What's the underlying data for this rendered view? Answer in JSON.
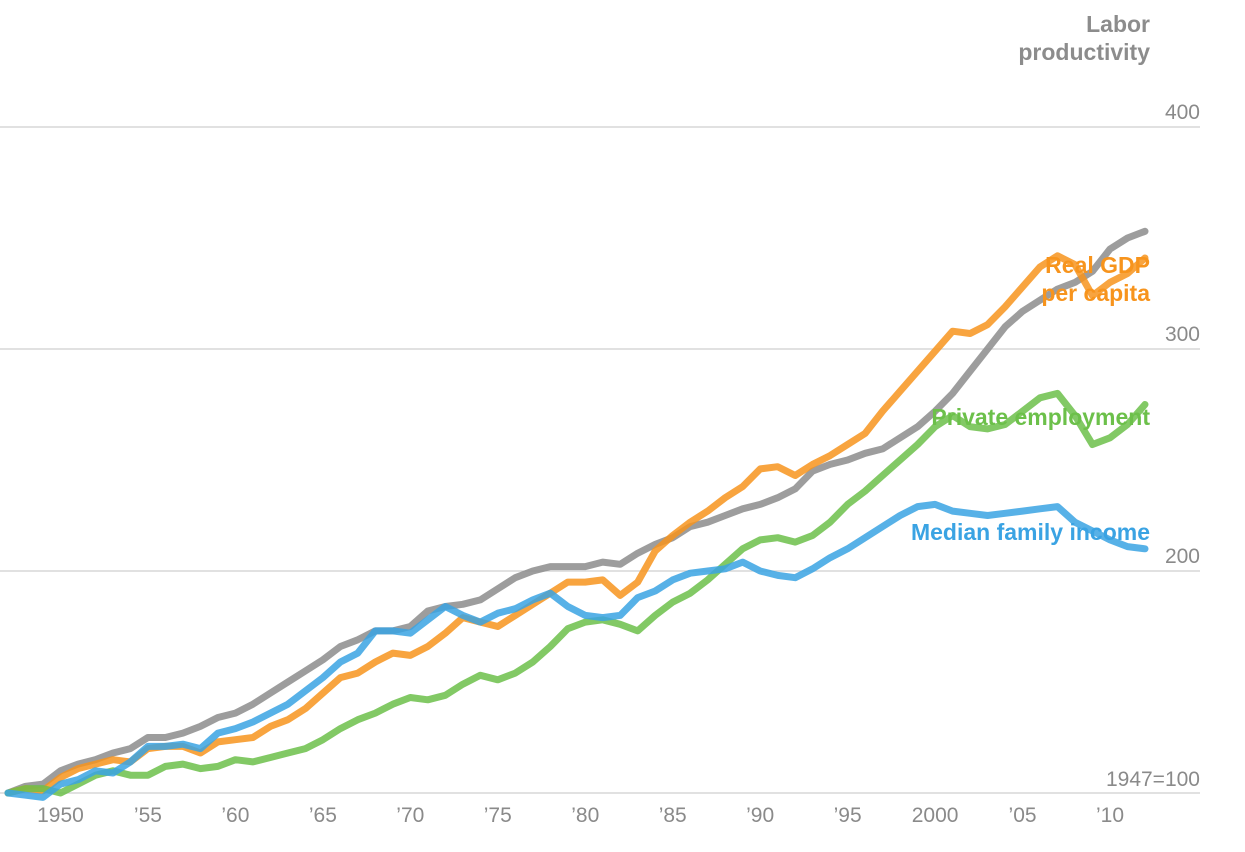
{
  "chart_data": {
    "type": "line",
    "title": "",
    "xlabel": "",
    "ylabel": "",
    "baseline_note": "1947=100",
    "xlim": [
      1947,
      2012
    ],
    "ylim": [
      100,
      430
    ],
    "grid": true,
    "x_ticks": [
      {
        "value": 1950,
        "label": "1950"
      },
      {
        "value": 1955,
        "label": "’55"
      },
      {
        "value": 1960,
        "label": "’60"
      },
      {
        "value": 1965,
        "label": "’65"
      },
      {
        "value": 1970,
        "label": "’70"
      },
      {
        "value": 1975,
        "label": "’75"
      },
      {
        "value": 1980,
        "label": "’80"
      },
      {
        "value": 1985,
        "label": "’85"
      },
      {
        "value": 1990,
        "label": "’90"
      },
      {
        "value": 1995,
        "label": "’95"
      },
      {
        "value": 2000,
        "label": "2000"
      },
      {
        "value": 2005,
        "label": "’05"
      },
      {
        "value": 2010,
        "label": "’10"
      }
    ],
    "y_ticks": [
      {
        "value": 200,
        "label": "200"
      },
      {
        "value": 300,
        "label": "300"
      },
      {
        "value": 400,
        "label": "400"
      }
    ],
    "x": [
      1947,
      1948,
      1949,
      1950,
      1951,
      1952,
      1953,
      1954,
      1955,
      1956,
      1957,
      1958,
      1959,
      1960,
      1961,
      1962,
      1963,
      1964,
      1965,
      1966,
      1967,
      1968,
      1969,
      1970,
      1971,
      1972,
      1973,
      1974,
      1975,
      1976,
      1977,
      1978,
      1979,
      1980,
      1981,
      1982,
      1983,
      1984,
      1985,
      1986,
      1987,
      1988,
      1989,
      1990,
      1991,
      1992,
      1993,
      1994,
      1995,
      1996,
      1997,
      1998,
      1999,
      2000,
      2001,
      2002,
      2003,
      2004,
      2005,
      2006,
      2007,
      2008,
      2009,
      2010,
      2011,
      2012
    ],
    "series": [
      {
        "name": "Labor productivity",
        "label_lines": [
          "Labor",
          "productivity"
        ],
        "color": "#8c8c8c",
        "values": [
          100,
          103,
          104,
          110,
          113,
          115,
          118,
          120,
          125,
          125,
          127,
          130,
          134,
          136,
          140,
          145,
          150,
          155,
          160,
          166,
          169,
          173,
          173,
          175,
          182,
          184,
          185,
          187,
          192,
          197,
          200,
          202,
          202,
          202,
          204,
          203,
          208,
          212,
          215,
          220,
          222,
          225,
          228,
          230,
          233,
          237,
          245,
          248,
          250,
          253,
          255,
          260,
          265,
          272,
          280,
          290,
          300,
          310,
          317,
          322,
          327,
          330,
          335,
          345,
          350,
          353
        ]
      },
      {
        "name": "Real GDP per capita",
        "label_lines": [
          "Real GDP",
          "per capita"
        ],
        "color": "#f7941d",
        "values": [
          100,
          102,
          101,
          107,
          111,
          113,
          115,
          114,
          120,
          121,
          121,
          118,
          123,
          124,
          125,
          130,
          133,
          138,
          145,
          152,
          154,
          159,
          163,
          162,
          166,
          172,
          179,
          177,
          175,
          180,
          185,
          190,
          195,
          195,
          196,
          189,
          195,
          209,
          216,
          222,
          227,
          233,
          238,
          246,
          247,
          243,
          248,
          252,
          257,
          262,
          272,
          281,
          290,
          299,
          308,
          307,
          311,
          319,
          328,
          337,
          342,
          338,
          324,
          330,
          334,
          341
        ]
      },
      {
        "name": "Private employment",
        "label_lines": [
          "Private employment"
        ],
        "color": "#6cc04a",
        "values": [
          100,
          102,
          102,
          100,
          104,
          108,
          110,
          108,
          108,
          112,
          113,
          111,
          112,
          115,
          114,
          116,
          118,
          120,
          124,
          129,
          133,
          136,
          140,
          143,
          142,
          144,
          149,
          153,
          151,
          154,
          159,
          166,
          174,
          177,
          178,
          176,
          173,
          180,
          186,
          190,
          196,
          203,
          210,
          214,
          215,
          213,
          216,
          222,
          230,
          236,
          243,
          250,
          257,
          265,
          270,
          265,
          264,
          266,
          272,
          278,
          280,
          270,
          257,
          260,
          266,
          275
        ]
      },
      {
        "name": "Median family income",
        "label_lines": [
          "Median family income"
        ],
        "color": "#3aa3e3",
        "values": [
          100,
          99,
          98,
          104,
          106,
          110,
          109,
          114,
          121,
          121,
          122,
          120,
          127,
          129,
          132,
          136,
          140,
          146,
          152,
          159,
          163,
          173,
          173,
          172,
          178,
          184,
          180,
          177,
          181,
          183,
          187,
          190,
          184,
          180,
          179,
          180,
          188,
          191,
          196,
          199,
          200,
          201,
          204,
          200,
          198,
          197,
          201,
          206,
          210,
          215,
          220,
          225,
          229,
          230,
          227,
          226,
          225,
          226,
          227,
          228,
          229,
          222,
          218,
          214,
          211,
          210
        ]
      }
    ]
  }
}
